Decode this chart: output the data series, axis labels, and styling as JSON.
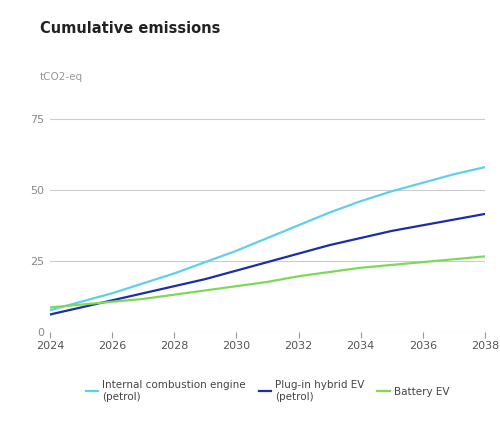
{
  "title": "Cumulative emissions",
  "ylabel": "tCO2-eq",
  "years": [
    2024,
    2025,
    2026,
    2027,
    2028,
    2029,
    2030,
    2031,
    2032,
    2033,
    2034,
    2035,
    2036,
    2037,
    2038
  ],
  "ice_values": [
    7.5,
    10.5,
    13.5,
    17.0,
    20.5,
    24.5,
    28.5,
    33.0,
    37.5,
    42.0,
    46.0,
    49.5,
    52.5,
    55.5,
    58.0
  ],
  "phev_values": [
    6.0,
    8.5,
    11.0,
    13.5,
    16.0,
    18.5,
    21.5,
    24.5,
    27.5,
    30.5,
    33.0,
    35.5,
    37.5,
    39.5,
    41.5
  ],
  "bev_values": [
    8.5,
    9.5,
    10.5,
    11.5,
    13.0,
    14.5,
    16.0,
    17.5,
    19.5,
    21.0,
    22.5,
    23.5,
    24.5,
    25.5,
    26.5
  ],
  "ice_color": "#5ECFEC",
  "phev_color": "#1A2EAA",
  "bev_color": "#7ED957",
  "background_color": "#FFFFFF",
  "grid_color": "#CCCCCC",
  "ylim": [
    0,
    87
  ],
  "yticks": [
    0,
    25,
    50,
    75
  ],
  "ygrid_lines": [
    25,
    50,
    75
  ],
  "xticks": [
    2024,
    2026,
    2028,
    2030,
    2032,
    2034,
    2036,
    2038
  ],
  "ice_label": "Internal combustion engine\n(petrol)",
  "phev_label": "Plug-in hybrid EV\n(petrol)",
  "bev_label": "Battery EV",
  "line_width": 1.6,
  "title_fontsize": 10.5,
  "axis_label_fontsize": 7.5,
  "tick_fontsize": 8,
  "legend_fontsize": 7.5
}
